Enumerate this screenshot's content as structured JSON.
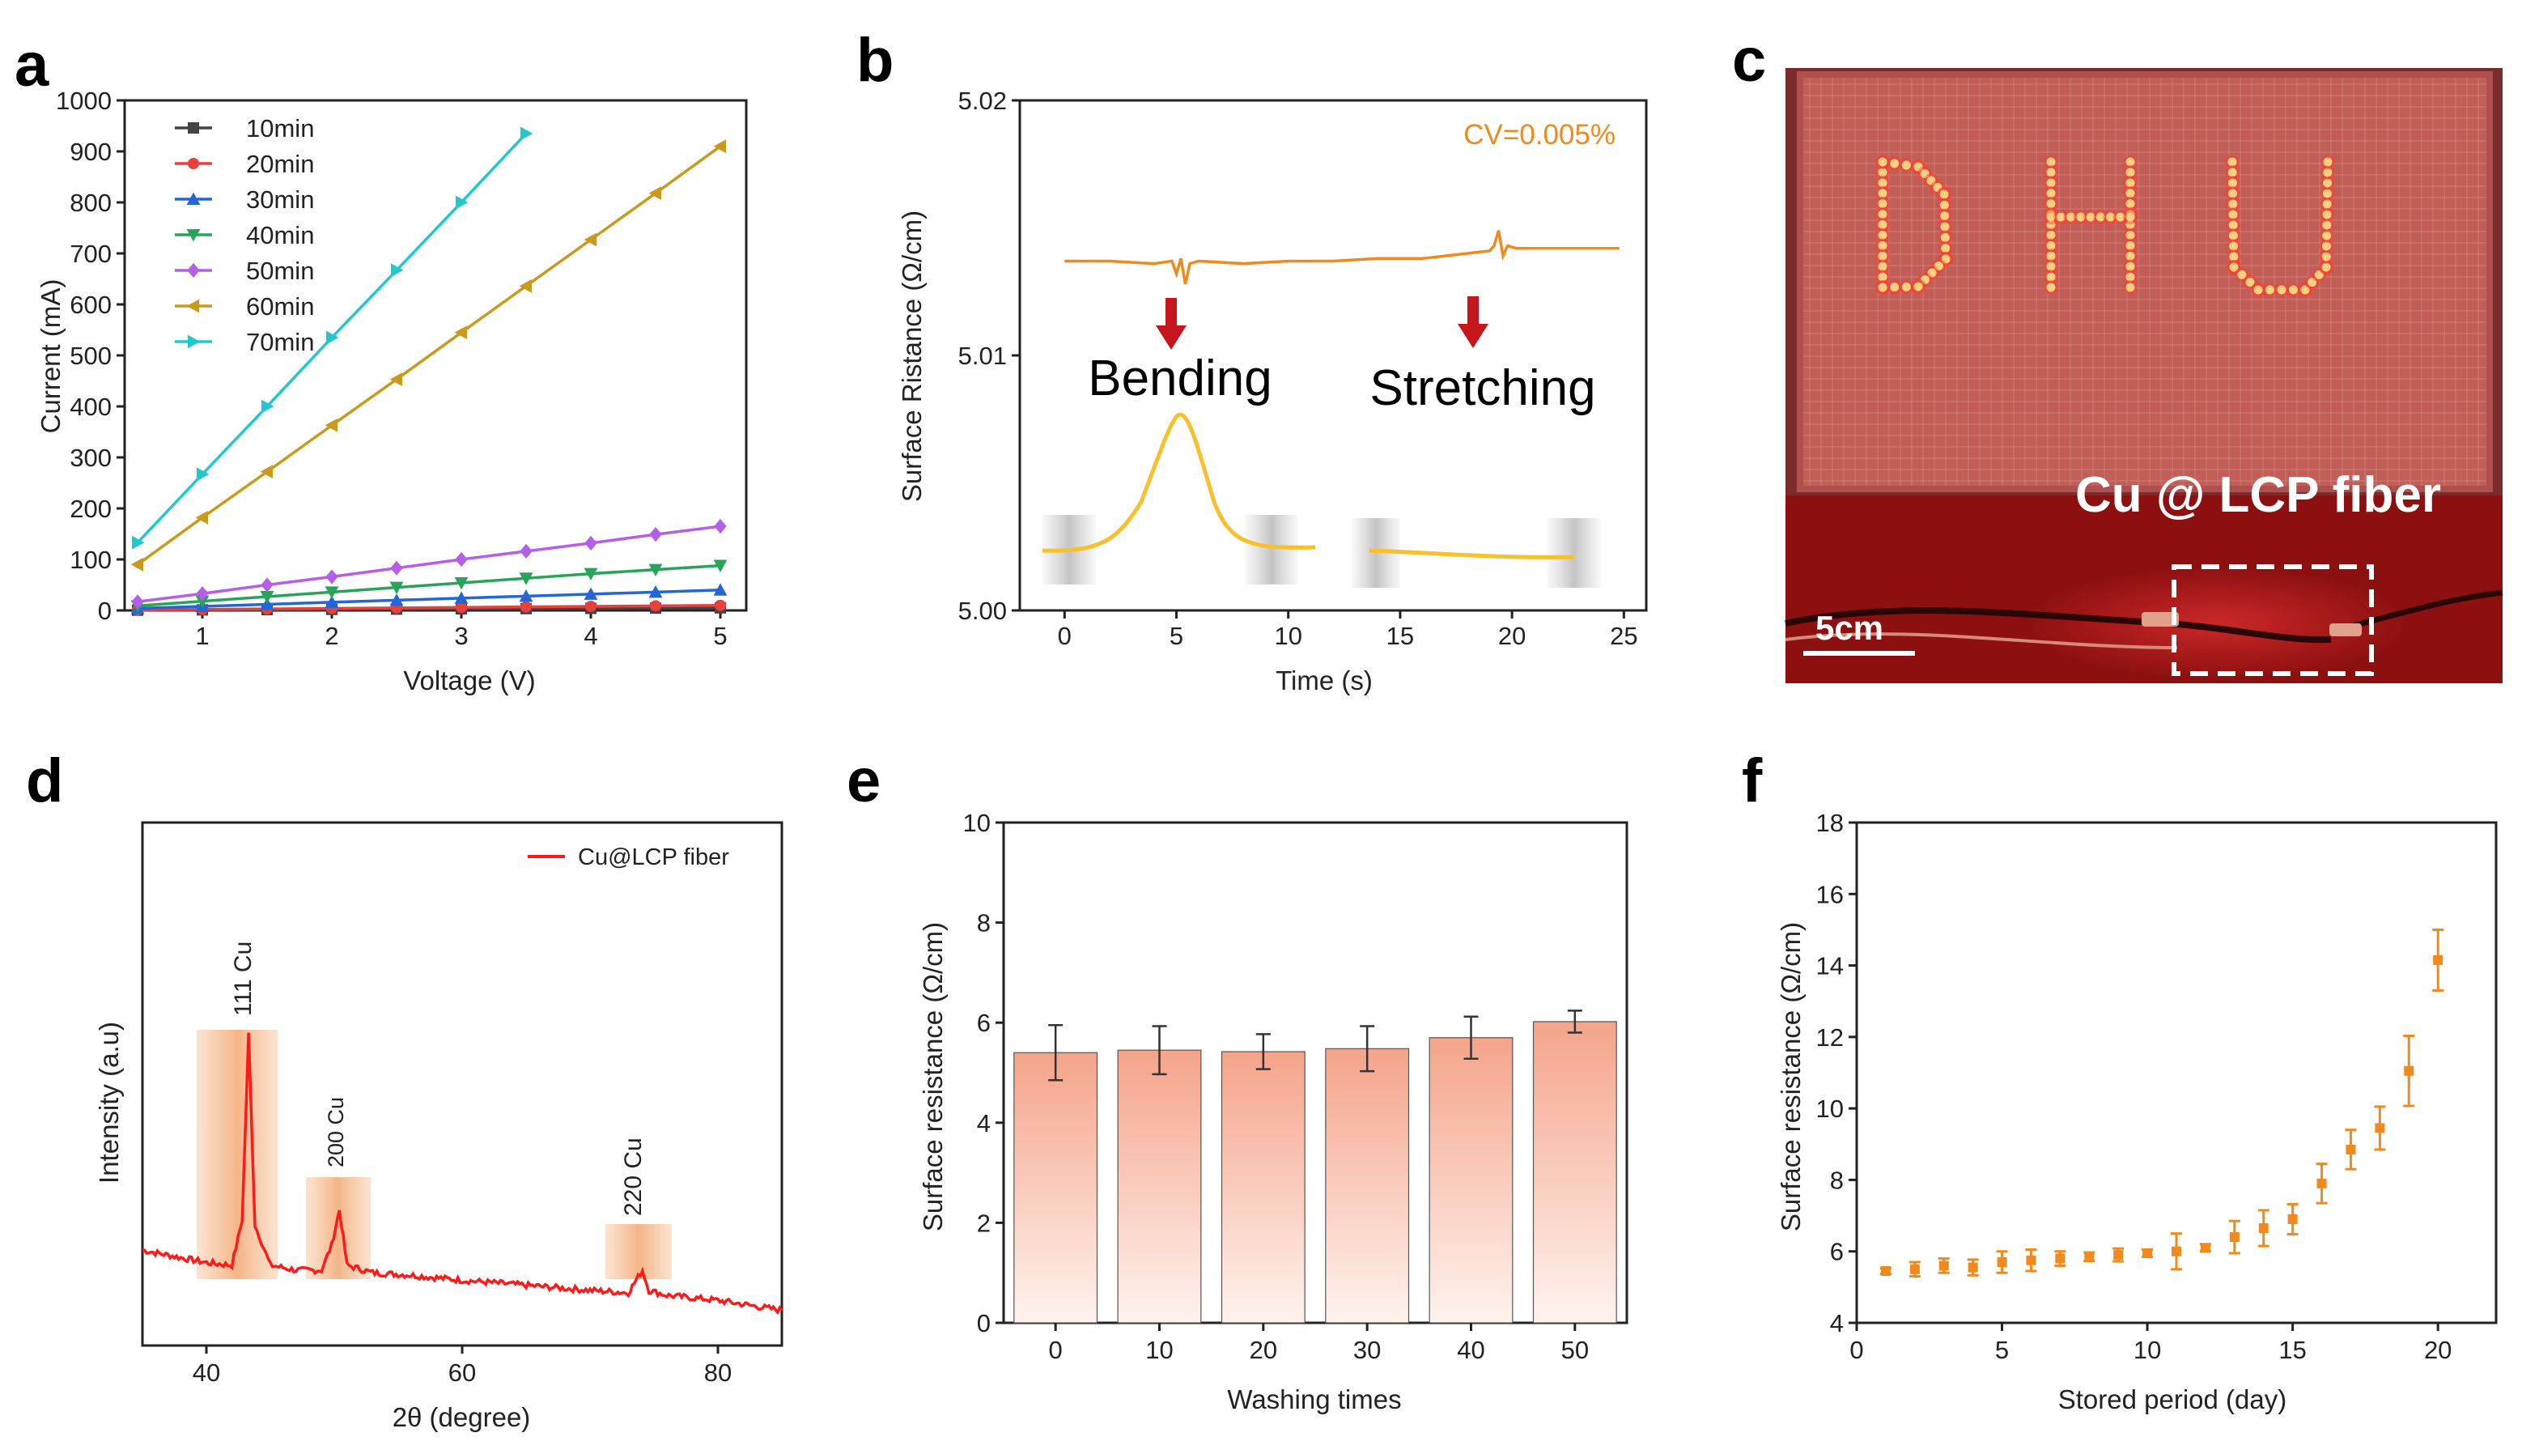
{
  "panels": {
    "a": {
      "letter": "a"
    },
    "b": {
      "letter": "b"
    },
    "c": {
      "letter": "c"
    },
    "d": {
      "letter": "d"
    },
    "e": {
      "letter": "e"
    },
    "f": {
      "letter": "f"
    }
  },
  "photo": {
    "display_text": "DHU",
    "label": "Cu @ LCP fiber",
    "scale_bar": "5cm",
    "colors": {
      "background": "#5e1b1b",
      "led": "#ffcf80",
      "board": "#7a3434"
    }
  },
  "chart_data": [
    {
      "id": "a",
      "type": "line",
      "title": "",
      "xlabel": "Voltage (V)",
      "ylabel": "Current (mA)",
      "xlim": [
        0.4,
        5.2
      ],
      "ylim": [
        0,
        1000
      ],
      "xticks": [
        1,
        2,
        3,
        4,
        5
      ],
      "yticks": [
        0,
        100,
        200,
        300,
        400,
        500,
        600,
        700,
        800,
        900,
        1000
      ],
      "legend_position": "top-left",
      "series": [
        {
          "name": "10min",
          "color": "#444444",
          "marker": "square",
          "x": [
            0.5,
            1,
            1.5,
            2,
            2.5,
            3,
            3.5,
            4,
            4.5,
            5
          ],
          "y": [
            0.5,
            1,
            1.5,
            2,
            2.5,
            3,
            3.5,
            4,
            4.5,
            5
          ]
        },
        {
          "name": "20min",
          "color": "#e8413c",
          "marker": "circle",
          "x": [
            0.5,
            1,
            1.5,
            2,
            2.5,
            3,
            3.5,
            4,
            4.5,
            5
          ],
          "y": [
            1,
            2,
            3,
            4,
            5,
            6,
            7,
            8,
            9,
            10
          ]
        },
        {
          "name": "30min",
          "color": "#2466d6",
          "marker": "triangle-up",
          "x": [
            0.5,
            1,
            1.5,
            2,
            2.5,
            3,
            3.5,
            4,
            4.5,
            5
          ],
          "y": [
            4,
            8,
            12,
            16,
            20,
            24,
            28,
            32,
            36,
            40
          ]
        },
        {
          "name": "40min",
          "color": "#27a35a",
          "marker": "triangle-down",
          "x": [
            0.5,
            1,
            1.5,
            2,
            2.5,
            3,
            3.5,
            4,
            4.5,
            5
          ],
          "y": [
            9,
            18,
            27,
            36,
            45,
            54,
            63,
            72,
            80,
            88
          ]
        },
        {
          "name": "50min",
          "color": "#b55ee6",
          "marker": "diamond",
          "x": [
            0.5,
            1,
            1.5,
            2,
            2.5,
            3,
            3.5,
            4,
            4.5,
            5
          ],
          "y": [
            17,
            33,
            50,
            66,
            83,
            100,
            116,
            132,
            149,
            165
          ]
        },
        {
          "name": "60min",
          "color": "#c99a1b",
          "marker": "triangle-left",
          "x": [
            0.5,
            1,
            1.5,
            2,
            2.5,
            3,
            3.5,
            4,
            4.5,
            5
          ],
          "y": [
            90,
            182,
            272,
            363,
            453,
            545,
            636,
            727,
            818,
            910
          ]
        },
        {
          "name": "70min",
          "color": "#21c9cf",
          "marker": "triangle-right",
          "x": [
            0.5,
            1,
            1.5,
            2,
            2.5,
            3,
            3.5
          ],
          "y": [
            133,
            267,
            400,
            535,
            667,
            800,
            935
          ]
        }
      ]
    },
    {
      "id": "b",
      "type": "line",
      "title": "",
      "xlabel": "Time (s)",
      "ylabel": "Surface Ristance (Ω/cm)",
      "xlim": [
        -2,
        26
      ],
      "ylim": [
        5.0,
        5.02
      ],
      "xticks": [
        0,
        5,
        10,
        15,
        20,
        25
      ],
      "yticks": [
        5.0,
        5.01,
        5.02
      ],
      "ytick_labels": [
        "5.00",
        "5.01",
        "5.02"
      ],
      "annotation": "CV=0.005%",
      "events": [
        {
          "label": "Bending",
          "time": 5.2
        },
        {
          "label": "Stretching",
          "time": 19.7
        }
      ],
      "series": [
        {
          "name": "surface resistance",
          "color": "#f08a1c",
          "x": [
            0,
            2,
            4,
            4.8,
            5.0,
            5.2,
            5.4,
            5.6,
            6,
            8,
            10,
            12,
            14,
            16,
            18,
            19,
            19.2,
            19.4,
            19.6,
            19.8,
            20.2,
            22,
            24,
            24.8
          ],
          "y": [
            5.0137,
            5.0137,
            5.0136,
            5.0137,
            5.0132,
            5.0138,
            5.0128,
            5.0136,
            5.0137,
            5.0136,
            5.0137,
            5.0137,
            5.0138,
            5.0138,
            5.014,
            5.0141,
            5.0143,
            5.0149,
            5.0139,
            5.0143,
            5.0142,
            5.0142,
            5.0142,
            5.0142
          ]
        }
      ]
    },
    {
      "id": "d",
      "type": "line",
      "title": "",
      "xlabel": "2θ (degree)",
      "ylabel": "Intensity (a.u)",
      "xlim": [
        35,
        85
      ],
      "ylim": [
        0,
        1
      ],
      "xticks": [
        40,
        60,
        80
      ],
      "legend_position": "top-right",
      "peaks": [
        {
          "label": "111 Cu",
          "two_theta": 43.3
        },
        {
          "label": "200 Cu",
          "two_theta": 50.4
        },
        {
          "label": "220 Cu",
          "two_theta": 74.1
        }
      ],
      "series": [
        {
          "name": "Cu@LCP fiber",
          "color": "#ff1a1a",
          "x": [
            35,
            38,
            40,
            42,
            42.8,
            43.3,
            43.8,
            45,
            47,
            49,
            49.8,
            50.4,
            51,
            53,
            56,
            60,
            65,
            70,
            73,
            73.6,
            74.1,
            74.6,
            76,
            80,
            85
          ],
          "y": [
            0.19,
            0.175,
            0.165,
            0.16,
            0.25,
            0.62,
            0.24,
            0.16,
            0.15,
            0.15,
            0.2,
            0.27,
            0.16,
            0.145,
            0.14,
            0.13,
            0.12,
            0.11,
            0.105,
            0.13,
            0.15,
            0.11,
            0.1,
            0.09,
            0.07
          ]
        }
      ]
    },
    {
      "id": "e",
      "type": "bar",
      "title": "",
      "xlabel": "Washing times",
      "ylabel": "Surface resistance (Ω/cm)",
      "ylim": [
        0,
        10
      ],
      "yticks": [
        0,
        2,
        4,
        6,
        8,
        10
      ],
      "categories": [
        "0",
        "10",
        "20",
        "30",
        "40",
        "50"
      ],
      "values": [
        5.4,
        5.45,
        5.42,
        5.48,
        5.7,
        6.02
      ],
      "errors": [
        0.55,
        0.48,
        0.35,
        0.45,
        0.42,
        0.22
      ],
      "colors": {
        "bar_top": "#f4a48a",
        "bar_bottom": "#fff3ee"
      }
    },
    {
      "id": "f",
      "type": "scatter",
      "title": "",
      "xlabel": "Stored period (day)",
      "ylabel": "Surface resistance (Ω/cm)",
      "xlim": [
        0,
        22
      ],
      "ylim": [
        4,
        18
      ],
      "xticks": [
        0,
        5,
        10,
        15,
        20
      ],
      "yticks": [
        4,
        6,
        8,
        10,
        12,
        14,
        16,
        18
      ],
      "series": [
        {
          "name": "stored",
          "color": "#f08a1c",
          "x": [
            1,
            2,
            3,
            4,
            5,
            6,
            7,
            8,
            9,
            10,
            11,
            12,
            13,
            14,
            15,
            16,
            17,
            18,
            19,
            20
          ],
          "y": [
            5.45,
            5.5,
            5.6,
            5.55,
            5.7,
            5.75,
            5.8,
            5.85,
            5.9,
            5.95,
            6.0,
            6.1,
            6.4,
            6.65,
            6.9,
            7.9,
            8.85,
            9.45,
            11.05,
            14.15
          ],
          "errors": [
            0.08,
            0.2,
            0.2,
            0.22,
            0.3,
            0.3,
            0.2,
            0.12,
            0.18,
            0.1,
            0.5,
            0.1,
            0.45,
            0.5,
            0.42,
            0.55,
            0.55,
            0.6,
            0.98,
            0.85
          ]
        }
      ]
    }
  ]
}
